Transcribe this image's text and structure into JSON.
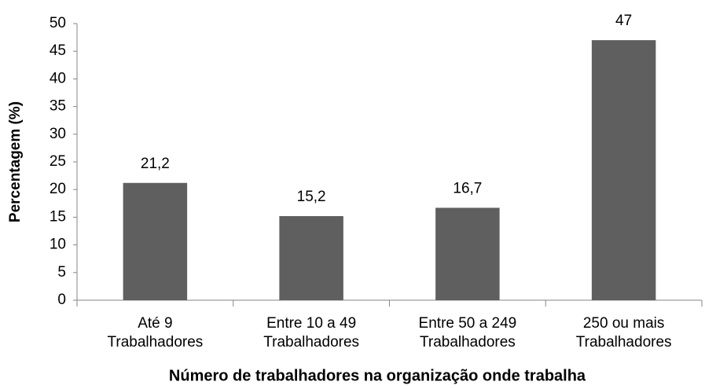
{
  "chart_data": {
    "type": "bar",
    "x_label": "Número de trabalhadores na organização onde trabalha",
    "y_label": "Percentagem (%)",
    "categories": [
      [
        "Até 9",
        "Trabalhadores"
      ],
      [
        "Entre 10 a 49",
        "Trabalhadores"
      ],
      [
        "Entre 50 a 249",
        "Trabalhadores"
      ],
      [
        "250 ou mais",
        "Trabalhadores"
      ]
    ],
    "values": [
      21.2,
      15.2,
      16.7,
      47
    ],
    "value_labels": [
      "21,2",
      "15,2",
      "16,7",
      "47"
    ],
    "color": "#5f5f5f",
    "ylim": [
      0,
      50
    ],
    "yticks": [
      0,
      5,
      10,
      15,
      20,
      25,
      30,
      35,
      40,
      45,
      50
    ],
    "grid": false
  }
}
